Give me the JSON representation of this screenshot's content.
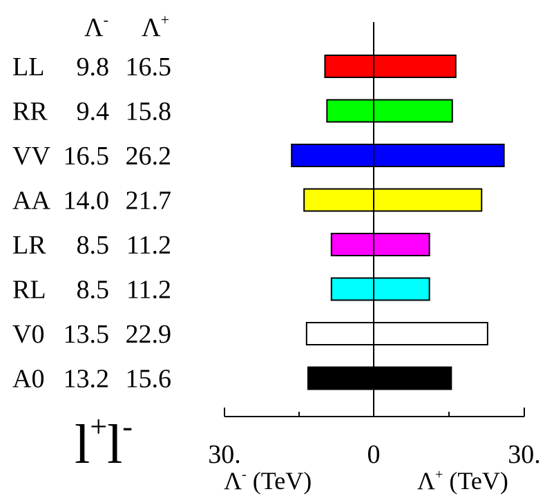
{
  "chart_data": {
    "type": "bar",
    "orientation": "horizontal",
    "header": {
      "lambda_minus": "Λ",
      "lambda_minus_sup": "-",
      "lambda_plus": "Λ",
      "lambda_plus_sup": "+"
    },
    "categories": [
      "LL",
      "RR",
      "VV",
      "AA",
      "LR",
      "RL",
      "V0",
      "A0"
    ],
    "lambda_minus_labels": [
      "9.8",
      "9.4",
      "16.5",
      "14.0",
      "8.5",
      "8.5",
      "13.5",
      "13.2"
    ],
    "lambda_plus_labels": [
      "16.5",
      "15.8",
      "26.2",
      "21.7",
      "11.2",
      "11.2",
      "22.9",
      "15.6"
    ],
    "series": [
      {
        "values_minus": [
          9.8,
          9.4,
          16.5,
          14.0,
          8.5,
          8.5,
          13.5,
          13.2
        ],
        "values_plus": [
          16.5,
          15.8,
          26.2,
          21.7,
          11.2,
          11.2,
          22.9,
          15.6
        ]
      }
    ],
    "colors": [
      "#ff0000",
      "#00ff00",
      "#0000ff",
      "#ffff00",
      "#ff00ff",
      "#00ffff",
      "#ffffff",
      "#000000"
    ],
    "axis": {
      "range": [
        -30,
        30
      ],
      "tick_labels": {
        "left": "30.",
        "center": "0",
        "right": "30."
      },
      "xlabel_left": {
        "symbol": "Λ",
        "sup": "-",
        "unit": " (TeV)"
      },
      "xlabel_right": {
        "symbol": "Λ",
        "sup": "+",
        "unit": " (TeV)"
      }
    },
    "process_label": {
      "a": "l",
      "a_sup": "+",
      "b": "l",
      "b_sup": "-"
    }
  }
}
